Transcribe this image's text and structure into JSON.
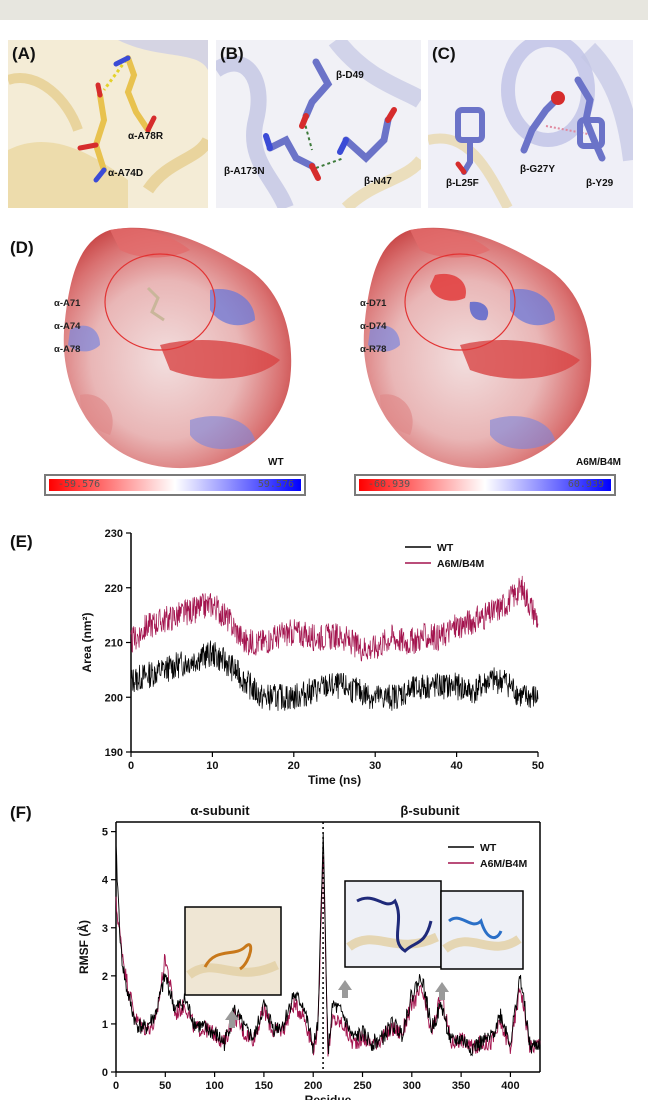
{
  "panels": {
    "a": {
      "label": "(A)",
      "residues": [
        "α-A74D",
        "α-A78R"
      ]
    },
    "b": {
      "label": "(B)",
      "residues": [
        "β-D49",
        "β-A173N",
        "β-N47"
      ]
    },
    "c": {
      "label": "(C)",
      "residues": [
        "β-L25F",
        "β-G27Y",
        "β-Y29"
      ]
    },
    "d": {
      "label": "(D)",
      "wt": {
        "tag": "WT",
        "residues": [
          "α-A71",
          "α-A74",
          "α-A78"
        ],
        "scale_min": "-59.576",
        "scale_max": "59.576"
      },
      "mut": {
        "tag": "A6M/B4M",
        "residues": [
          "α-D71",
          "α-D74",
          "α-R78"
        ],
        "scale_min": "-60.939",
        "scale_max": "60.939"
      }
    },
    "e": {
      "label": "(E)"
    },
    "f": {
      "label": "(F)",
      "alpha_header": "α-subunit",
      "beta_header": "β-subunit"
    }
  },
  "colors": {
    "wt": "#000000",
    "mut": "#a3144e",
    "alpha_carbon": "#e8c24f",
    "beta_carbon": "#6b73c8",
    "alpha_cartoon": "#f0dca8",
    "beta_cartoon": "#b9bde6"
  },
  "chart_data": [
    {
      "type": "line",
      "xlabel": "Time (ns)",
      "ylabel": "Area (nm²)",
      "xlim": [
        0,
        50
      ],
      "ylim": [
        190,
        230
      ],
      "xticks": [
        0,
        10,
        20,
        30,
        40,
        50
      ],
      "yticks": [
        190,
        200,
        210,
        220,
        230
      ],
      "legend_position": "top-right",
      "x": [
        0,
        2,
        4,
        6,
        8,
        10,
        12,
        14,
        16,
        18,
        20,
        22,
        24,
        26,
        28,
        30,
        32,
        34,
        36,
        38,
        40,
        42,
        44,
        46,
        48,
        50
      ],
      "series": [
        {
          "name": "WT",
          "values": [
            203,
            204,
            205,
            206,
            207,
            208,
            206,
            203,
            200,
            200,
            200,
            201,
            202,
            202,
            201,
            200,
            200,
            201,
            202,
            202,
            202,
            201,
            203,
            203,
            200,
            200
          ]
        },
        {
          "name": "A6M/B4M",
          "values": [
            210,
            213,
            214,
            215,
            216,
            217,
            214,
            210,
            210,
            211,
            212,
            211,
            211,
            211,
            209,
            209,
            211,
            210,
            211,
            211,
            213,
            214,
            215,
            217,
            220,
            214
          ]
        }
      ]
    },
    {
      "type": "line",
      "xlabel": "Residue",
      "ylabel": "RMSF (Å)",
      "xlim": [
        0,
        430
      ],
      "ylim": [
        0,
        5.2
      ],
      "xticks": [
        0,
        50,
        100,
        150,
        200,
        250,
        300,
        350,
        400
      ],
      "yticks": [
        0,
        1,
        2,
        3,
        4,
        5
      ],
      "divider_x": 210,
      "legend_position": "top-right",
      "x": [
        0,
        5,
        10,
        20,
        30,
        40,
        50,
        60,
        70,
        80,
        90,
        100,
        110,
        120,
        130,
        140,
        150,
        160,
        170,
        180,
        190,
        200,
        205,
        210,
        215,
        220,
        230,
        240,
        250,
        260,
        270,
        280,
        290,
        300,
        310,
        320,
        330,
        340,
        350,
        360,
        370,
        380,
        390,
        400,
        410,
        420,
        430
      ],
      "series": [
        {
          "name": "WT",
          "values": [
            4.6,
            2.5,
            1.8,
            1.0,
            0.9,
            1.2,
            2.0,
            1.3,
            1.5,
            1.0,
            0.9,
            0.8,
            0.6,
            1.3,
            0.9,
            0.7,
            1.4,
            0.9,
            1.0,
            1.6,
            1.4,
            0.5,
            1.0,
            5.0,
            0.4,
            1.4,
            1.2,
            0.7,
            0.8,
            0.6,
            0.7,
            1.0,
            0.8,
            1.6,
            2.0,
            0.9,
            1.4,
            0.6,
            0.7,
            0.5,
            0.6,
            0.7,
            1.2,
            0.6,
            2.0,
            0.5,
            0.6
          ]
        },
        {
          "name": "A6M/B4M",
          "values": [
            3.5,
            2.7,
            2.0,
            1.1,
            0.9,
            1.0,
            2.4,
            1.2,
            1.4,
            0.9,
            0.9,
            0.8,
            0.6,
            1.2,
            0.8,
            0.7,
            1.3,
            0.8,
            0.9,
            1.4,
            1.2,
            0.5,
            0.9,
            4.7,
            0.4,
            1.1,
            1.0,
            0.6,
            0.7,
            0.6,
            0.7,
            0.9,
            0.8,
            1.4,
            1.7,
            0.8,
            1.6,
            0.6,
            0.7,
            0.5,
            0.6,
            0.6,
            1.0,
            0.5,
            1.8,
            0.5,
            0.6
          ]
        }
      ]
    }
  ]
}
